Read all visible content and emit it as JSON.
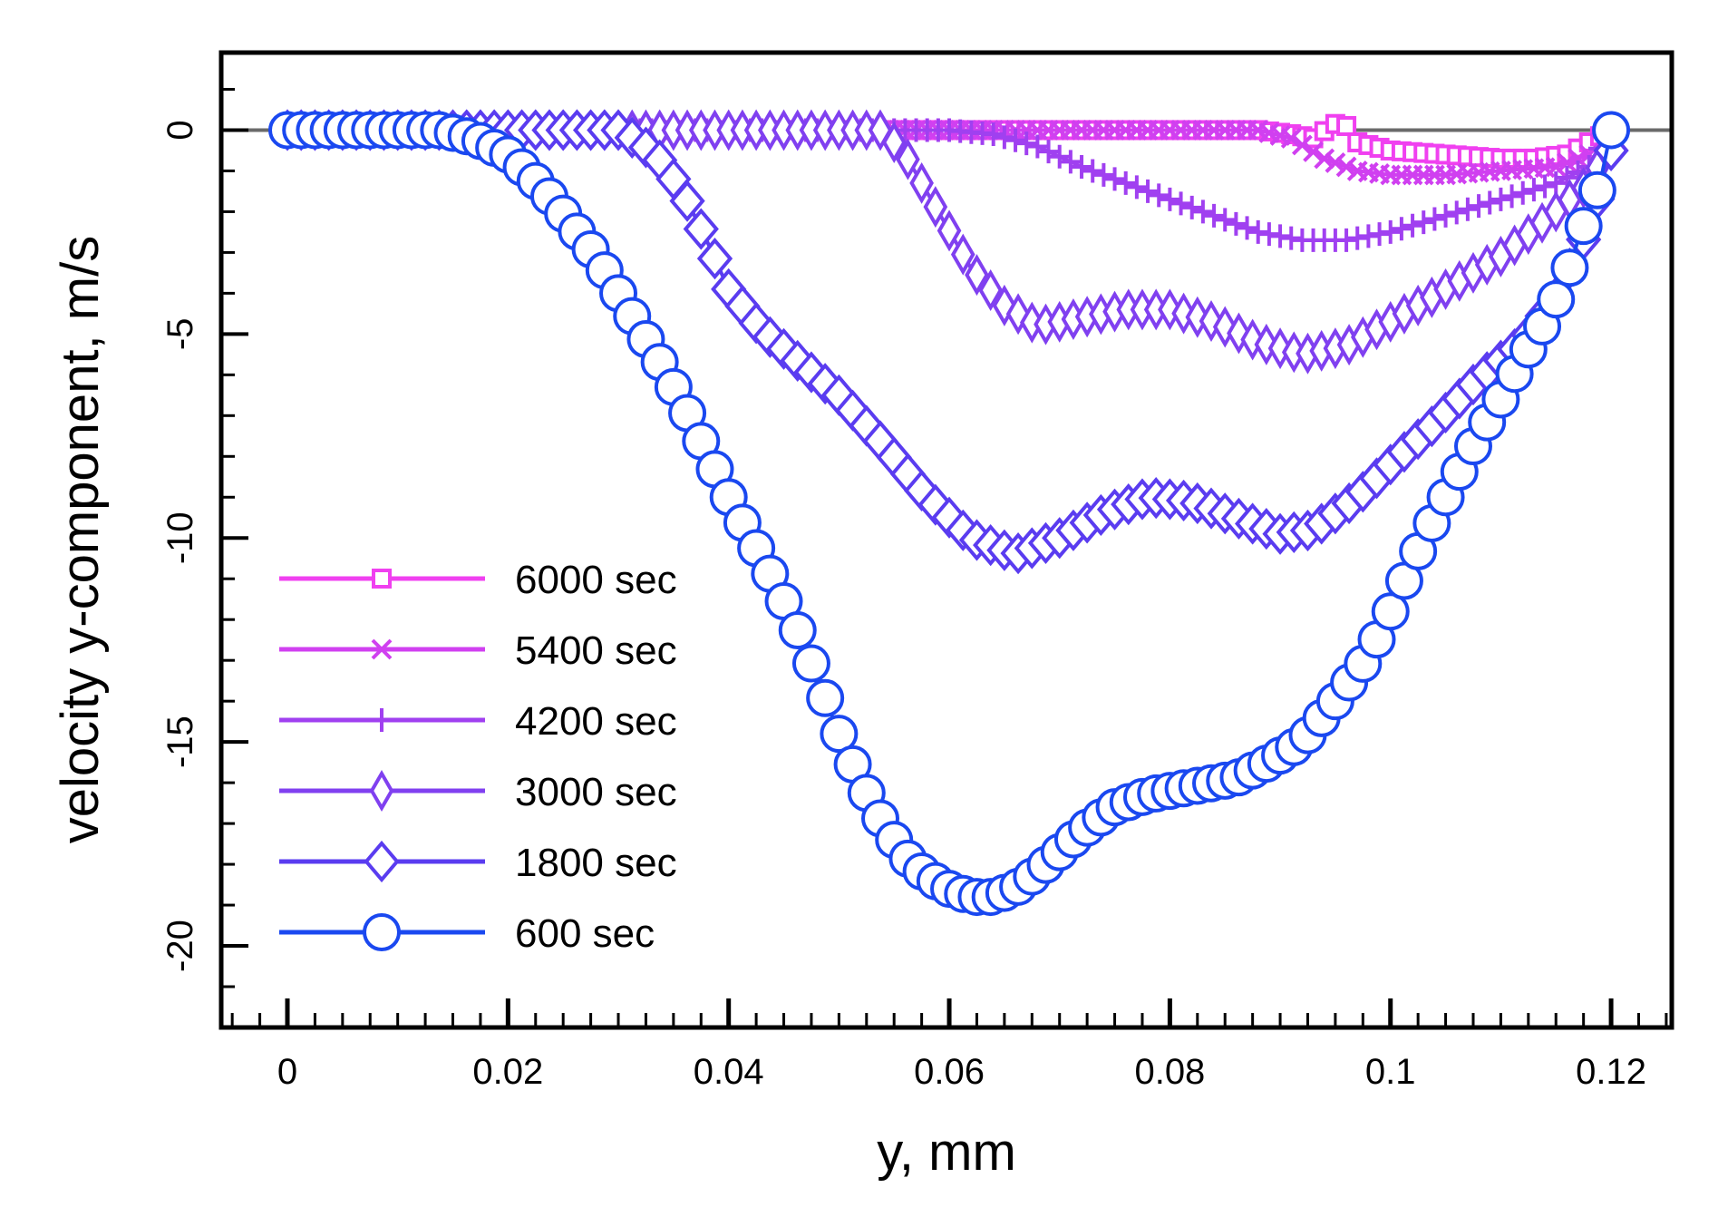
{
  "chart_data": {
    "type": "line",
    "title": "",
    "xlabel": "y, mm",
    "ylabel": "velocity y-component, m/s",
    "xlim": [
      -0.006,
      0.1255
    ],
    "ylim": [
      -22,
      1.9
    ],
    "x_ticks": [
      0,
      0.02,
      0.04,
      0.06,
      0.08,
      0.1,
      0.12
    ],
    "x_tick_labels": [
      "0",
      "0.02",
      "0.04",
      "0.06",
      "0.08",
      "0.1",
      "0.12"
    ],
    "y_ticks": [
      0,
      -5,
      -10,
      -15,
      -20
    ],
    "y_tick_labels": [
      "0",
      "-5",
      "-10",
      "-15",
      "-20"
    ],
    "grid": false,
    "zero_line": true,
    "legend_position": "bottom-left",
    "series": [
      {
        "name": "6000 sec",
        "color": "#f040f0",
        "marker": "square",
        "points": [
          [
            0,
            0
          ],
          [
            0.054,
            0
          ],
          [
            0.06,
            0
          ],
          [
            0.07,
            0
          ],
          [
            0.08,
            0
          ],
          [
            0.088,
            0
          ],
          [
            0.091,
            -0.1
          ],
          [
            0.093,
            -0.2
          ],
          [
            0.095,
            0.15
          ],
          [
            0.096,
            0.1
          ],
          [
            0.097,
            -0.3
          ],
          [
            0.1,
            -0.5
          ],
          [
            0.105,
            -0.6
          ],
          [
            0.11,
            -0.7
          ],
          [
            0.113,
            -0.7
          ],
          [
            0.116,
            -0.6
          ],
          [
            0.118,
            -0.3
          ],
          [
            0.12,
            0
          ]
        ]
      },
      {
        "name": "5400 sec",
        "color": "#d040f0",
        "marker": "x",
        "points": [
          [
            0,
            0
          ],
          [
            0.054,
            0
          ],
          [
            0.06,
            0
          ],
          [
            0.07,
            0
          ],
          [
            0.08,
            0
          ],
          [
            0.088,
            0
          ],
          [
            0.091,
            -0.2
          ],
          [
            0.094,
            -0.7
          ],
          [
            0.097,
            -1.0
          ],
          [
            0.1,
            -1.1
          ],
          [
            0.105,
            -1.1
          ],
          [
            0.11,
            -1.0
          ],
          [
            0.115,
            -0.9
          ],
          [
            0.118,
            -0.6
          ],
          [
            0.12,
            0
          ]
        ]
      },
      {
        "name": "4200 sec",
        "color": "#a040f0",
        "marker": "plus",
        "points": [
          [
            0,
            0
          ],
          [
            0.054,
            0
          ],
          [
            0.06,
            0
          ],
          [
            0.064,
            -0.1
          ],
          [
            0.068,
            -0.4
          ],
          [
            0.072,
            -0.9
          ],
          [
            0.076,
            -1.3
          ],
          [
            0.08,
            -1.7
          ],
          [
            0.084,
            -2.1
          ],
          [
            0.088,
            -2.5
          ],
          [
            0.092,
            -2.7
          ],
          [
            0.096,
            -2.7
          ],
          [
            0.1,
            -2.5
          ],
          [
            0.105,
            -2.1
          ],
          [
            0.11,
            -1.7
          ],
          [
            0.115,
            -1.3
          ],
          [
            0.118,
            -0.9
          ],
          [
            0.12,
            0
          ]
        ]
      },
      {
        "name": "3000 sec",
        "color": "#8040f0",
        "marker": "thin-diamond",
        "points": [
          [
            0,
            0
          ],
          [
            0.054,
            0
          ],
          [
            0.056,
            -0.6
          ],
          [
            0.059,
            -2.0
          ],
          [
            0.062,
            -3.4
          ],
          [
            0.065,
            -4.3
          ],
          [
            0.068,
            -4.8
          ],
          [
            0.072,
            -4.6
          ],
          [
            0.076,
            -4.4
          ],
          [
            0.08,
            -4.4
          ],
          [
            0.084,
            -4.7
          ],
          [
            0.088,
            -5.2
          ],
          [
            0.092,
            -5.5
          ],
          [
            0.096,
            -5.3
          ],
          [
            0.1,
            -4.7
          ],
          [
            0.105,
            -3.9
          ],
          [
            0.11,
            -3.1
          ],
          [
            0.115,
            -2.0
          ],
          [
            0.118,
            -1.3
          ],
          [
            0.12,
            -0.3
          ]
        ]
      },
      {
        "name": "1800 sec",
        "color": "#5a3cf0",
        "marker": "diamond",
        "points": [
          [
            0,
            0
          ],
          [
            0.03,
            0
          ],
          [
            0.032,
            -0.3
          ],
          [
            0.034,
            -0.8
          ],
          [
            0.036,
            -1.6
          ],
          [
            0.038,
            -2.7
          ],
          [
            0.04,
            -3.9
          ],
          [
            0.043,
            -4.9
          ],
          [
            0.046,
            -5.6
          ],
          [
            0.05,
            -6.5
          ],
          [
            0.054,
            -7.7
          ],
          [
            0.058,
            -9.0
          ],
          [
            0.062,
            -10.0
          ],
          [
            0.066,
            -10.4
          ],
          [
            0.07,
            -10.0
          ],
          [
            0.074,
            -9.4
          ],
          [
            0.078,
            -9.0
          ],
          [
            0.082,
            -9.1
          ],
          [
            0.086,
            -9.5
          ],
          [
            0.09,
            -9.9
          ],
          [
            0.093,
            -9.8
          ],
          [
            0.097,
            -9.0
          ],
          [
            0.1,
            -8.2
          ],
          [
            0.104,
            -7.2
          ],
          [
            0.108,
            -6.1
          ],
          [
            0.112,
            -5.2
          ],
          [
            0.115,
            -4.1
          ],
          [
            0.118,
            -2.4
          ],
          [
            0.12,
            -0.5
          ]
        ]
      },
      {
        "name": "600 sec",
        "color": "#1a48f0",
        "marker": "circle",
        "points": [
          [
            0,
            0
          ],
          [
            0.014,
            0
          ],
          [
            0.017,
            -0.2
          ],
          [
            0.02,
            -0.6
          ],
          [
            0.022,
            -1.1
          ],
          [
            0.024,
            -1.7
          ],
          [
            0.026,
            -2.4
          ],
          [
            0.028,
            -3.1
          ],
          [
            0.03,
            -4.0
          ],
          [
            0.032,
            -4.9
          ],
          [
            0.034,
            -5.8
          ],
          [
            0.036,
            -6.8
          ],
          [
            0.038,
            -7.9
          ],
          [
            0.04,
            -9.0
          ],
          [
            0.042,
            -10.0
          ],
          [
            0.044,
            -11.0
          ],
          [
            0.046,
            -12.1
          ],
          [
            0.048,
            -13.4
          ],
          [
            0.05,
            -14.8
          ],
          [
            0.052,
            -16.0
          ],
          [
            0.054,
            -17.0
          ],
          [
            0.056,
            -17.8
          ],
          [
            0.058,
            -18.3
          ],
          [
            0.06,
            -18.6
          ],
          [
            0.062,
            -18.8
          ],
          [
            0.064,
            -18.8
          ],
          [
            0.066,
            -18.6
          ],
          [
            0.068,
            -18.2
          ],
          [
            0.07,
            -17.7
          ],
          [
            0.072,
            -17.2
          ],
          [
            0.075,
            -16.6
          ],
          [
            0.078,
            -16.3
          ],
          [
            0.082,
            -16.1
          ],
          [
            0.086,
            -15.9
          ],
          [
            0.089,
            -15.5
          ],
          [
            0.092,
            -15.0
          ],
          [
            0.095,
            -14.0
          ],
          [
            0.098,
            -12.9
          ],
          [
            0.1,
            -11.8
          ],
          [
            0.102,
            -10.6
          ],
          [
            0.104,
            -9.5
          ],
          [
            0.106,
            -8.5
          ],
          [
            0.108,
            -7.5
          ],
          [
            0.11,
            -6.6
          ],
          [
            0.112,
            -5.6
          ],
          [
            0.114,
            -4.7
          ],
          [
            0.116,
            -3.6
          ],
          [
            0.117,
            -2.7
          ],
          [
            0.119,
            -1.3
          ],
          [
            0.12,
            0
          ]
        ]
      }
    ]
  }
}
